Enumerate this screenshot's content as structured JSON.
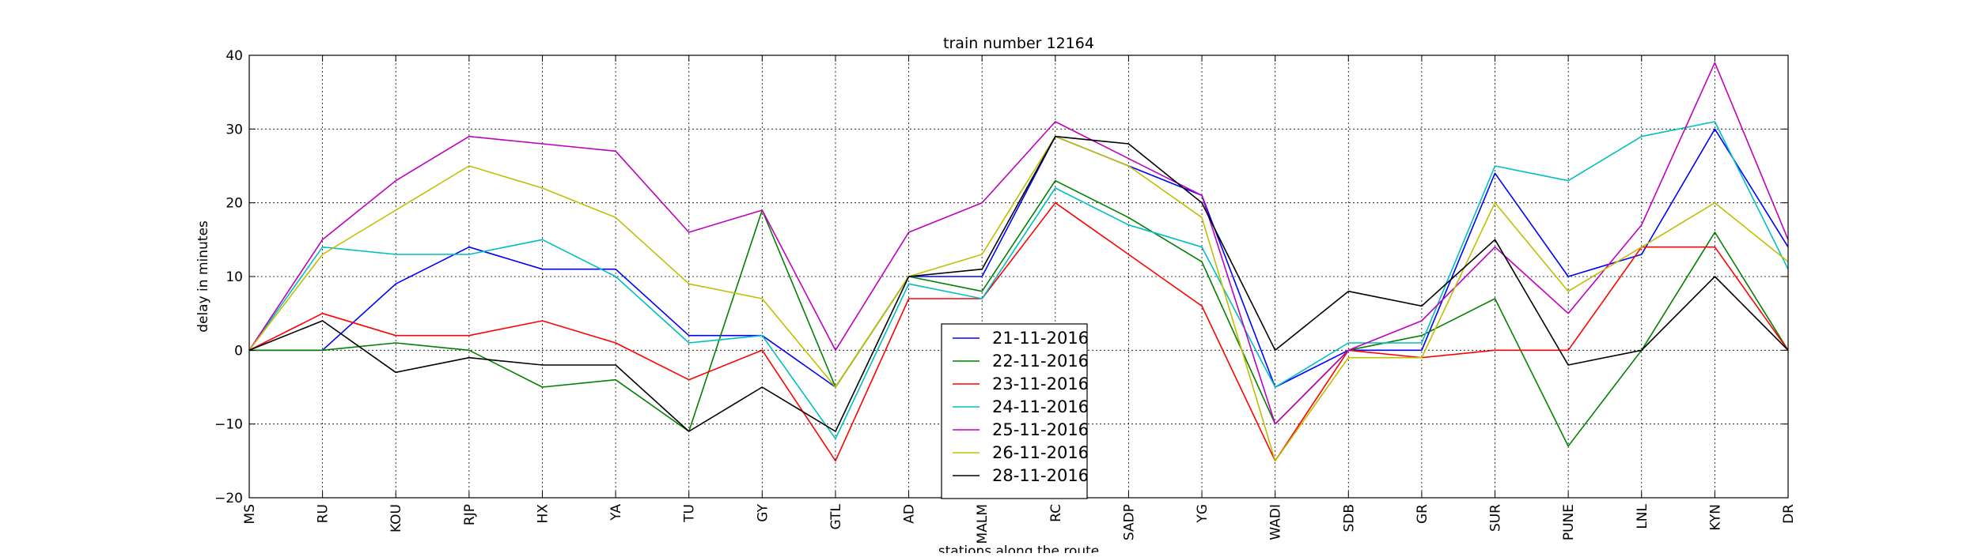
{
  "chart_data": {
    "type": "line",
    "title": "train number 12164",
    "xlabel": "stations along the route",
    "ylabel": "delay in minutes",
    "ylim": [
      -20,
      40
    ],
    "yticks": [
      -20,
      -10,
      0,
      10,
      20,
      30,
      40
    ],
    "ytick_labels": [
      "−20",
      "−10",
      "0",
      "10",
      "20",
      "30",
      "40"
    ],
    "grid": true,
    "legend_position": "lower-center",
    "categories": [
      "MS",
      "RU",
      "KOU",
      "RJP",
      "HX",
      "YA",
      "TU",
      "GY",
      "GTL",
      "AD",
      "MALM",
      "RC",
      "SADP",
      "YG",
      "WADI",
      "SDB",
      "GR",
      "SUR",
      "PUNE",
      "LNL",
      "KYN",
      "DR"
    ],
    "series": [
      {
        "name": "21-11-2016",
        "color": "#0000ff",
        "values": [
          0,
          0,
          9,
          14,
          11,
          11,
          2,
          2,
          -5,
          10,
          10,
          29,
          25,
          21,
          -5,
          0,
          0,
          24,
          10,
          13,
          30,
          14
        ]
      },
      {
        "name": "22-11-2016",
        "color": "#008000",
        "values": [
          0,
          0,
          1,
          0,
          -5,
          -4,
          -11,
          19,
          -5,
          10,
          8,
          23,
          18,
          12,
          -10,
          0,
          2,
          7,
          -13,
          0,
          16,
          0
        ]
      },
      {
        "name": "23-11-2016",
        "color": "#ff0000",
        "values": [
          0,
          5,
          2,
          2,
          4,
          1,
          -4,
          0,
          -15,
          7,
          7,
          20,
          13,
          6,
          -15,
          0,
          -1,
          0,
          0,
          14,
          14,
          0
        ]
      },
      {
        "name": "24-11-2016",
        "color": "#00bfbf",
        "values": [
          0,
          14,
          13,
          13,
          15,
          10,
          1,
          2,
          -12,
          9,
          7,
          22,
          17,
          14,
          -5,
          1,
          1,
          25,
          23,
          29,
          31,
          11
        ]
      },
      {
        "name": "25-11-2016",
        "color": "#bf00bf",
        "values": [
          0,
          15,
          23,
          29,
          28,
          27,
          16,
          19,
          0,
          16,
          20,
          31,
          26,
          21,
          -10,
          0,
          4,
          14,
          5,
          17,
          39,
          15
        ]
      },
      {
        "name": "26-11-2016",
        "color": "#bfbf00",
        "values": [
          0,
          13,
          19,
          25,
          22,
          18,
          9,
          7,
          -5,
          10,
          13,
          29,
          25,
          18,
          -15,
          -1,
          -1,
          20,
          8,
          14,
          20,
          12
        ]
      },
      {
        "name": "28-11-2016",
        "color": "#000000",
        "values": [
          0,
          4,
          -3,
          -1,
          -2,
          -2,
          -11,
          -5,
          -11,
          10,
          11,
          29,
          28,
          20,
          0,
          8,
          6,
          15,
          -2,
          0,
          10,
          0
        ]
      }
    ]
  }
}
